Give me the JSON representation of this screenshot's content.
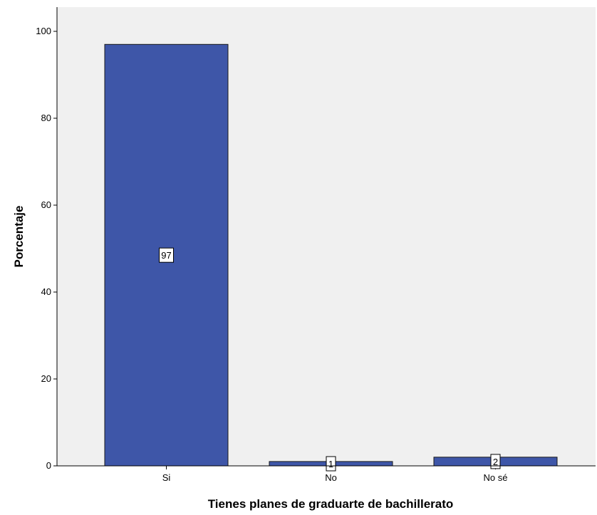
{
  "chart_data": {
    "type": "bar",
    "categories": [
      "Si",
      "No",
      "No sé"
    ],
    "values": [
      97,
      1,
      2
    ],
    "data_labels": [
      "97",
      "1",
      "2"
    ],
    "xlabel": "Tienes planes de graduarte de bachillerato",
    "ylabel": "Porcentaje",
    "ylim": [
      0,
      100
    ],
    "yticks": [
      0,
      20,
      40,
      60,
      80,
      100
    ],
    "grid": false,
    "colors": {
      "bar": "#3e56a8",
      "bar_stroke": "#1a1a1a",
      "plot_background": "#f0f0f0",
      "axis": "#000000"
    }
  }
}
